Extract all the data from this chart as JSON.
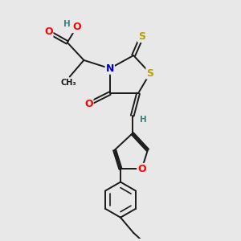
{
  "bg_color": "#e8e8e8",
  "bond_color": "#1a1a1a",
  "atom_colors": {
    "O": "#ff0000",
    "N": "#0000cc",
    "S": "#b8a000",
    "H": "#408080",
    "C": "#1a1a1a"
  },
  "font_size_atom": 9,
  "lw": 1.4
}
